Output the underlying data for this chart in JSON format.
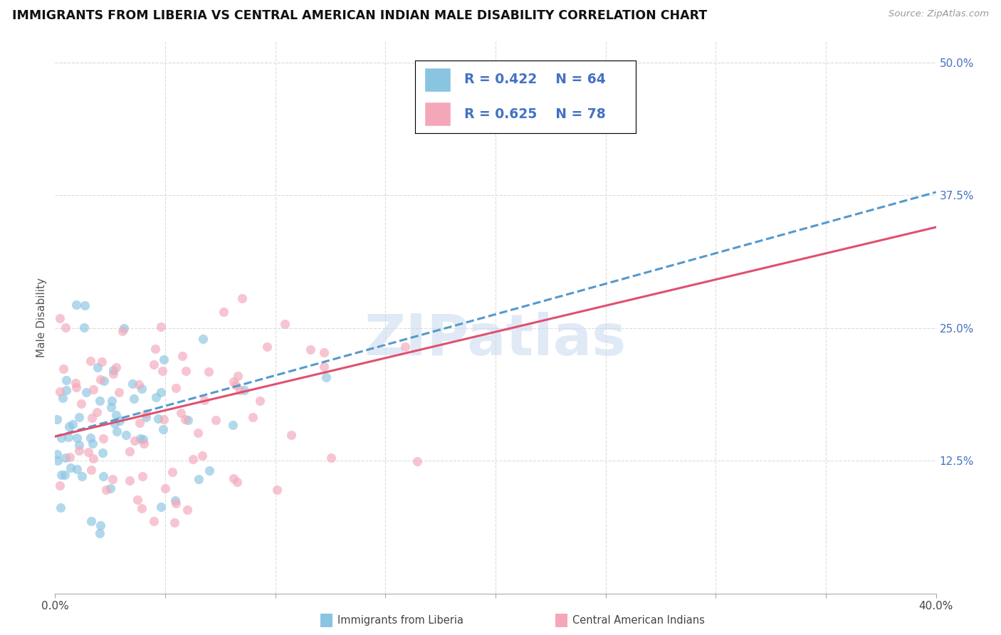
{
  "title": "IMMIGRANTS FROM LIBERIA VS CENTRAL AMERICAN INDIAN MALE DISABILITY CORRELATION CHART",
  "source": "Source: ZipAtlas.com",
  "ylabel": "Male Disability",
  "xlim": [
    0.0,
    0.4
  ],
  "ylim": [
    0.0,
    0.52
  ],
  "xtick_positions": [
    0.0,
    0.05,
    0.1,
    0.15,
    0.2,
    0.25,
    0.3,
    0.35,
    0.4
  ],
  "xtick_labels": [
    "0.0%",
    "",
    "",
    "",
    "",
    "",
    "",
    "",
    "40.0%"
  ],
  "ytick_values": [
    0.125,
    0.25,
    0.375,
    0.5
  ],
  "ytick_labels": [
    "12.5%",
    "25.0%",
    "37.5%",
    "50.0%"
  ],
  "watermark": "ZIPatlas",
  "legend1_R": "0.422",
  "legend1_N": "64",
  "legend2_R": "0.625",
  "legend2_N": "78",
  "color_blue": "#89c4e1",
  "color_pink": "#f4a7b9",
  "color_blue_line": "#5599cc",
  "color_pink_line": "#e05070",
  "grid_color": "#dddddd",
  "background_color": "#ffffff",
  "line_blue_y0": 0.148,
  "line_blue_y1": 0.378,
  "line_pink_y0": 0.148,
  "line_pink_y1": 0.345
}
